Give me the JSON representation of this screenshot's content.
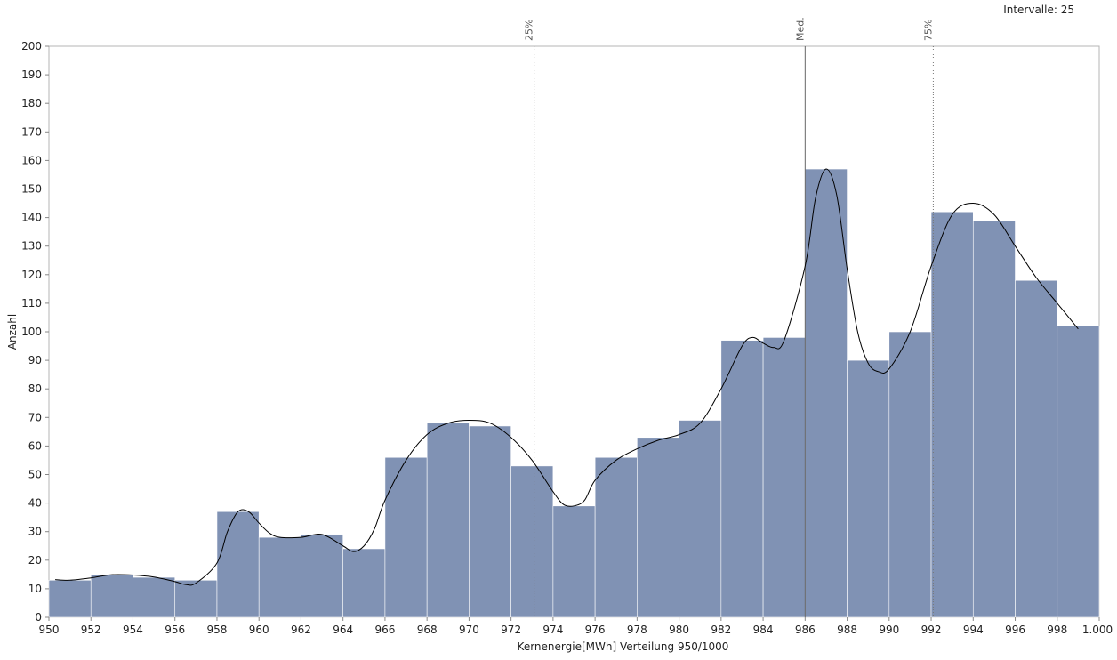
{
  "header": {
    "intervals_label": "Intervalle: 25"
  },
  "chart_data": {
    "type": "bar",
    "title": "",
    "xlabel": "Kernenergie[MWh] Verteilung 950/1000",
    "ylabel": "Anzahl",
    "xlim": [
      950,
      1000
    ],
    "ylim": [
      0,
      200
    ],
    "grid": false,
    "bin_edges": [
      950,
      952,
      954,
      956,
      958,
      960,
      962,
      964,
      966,
      968,
      970,
      972,
      974,
      976,
      978,
      980,
      982,
      984,
      986,
      988,
      990,
      992,
      994,
      996,
      998,
      1000
    ],
    "values": [
      13,
      15,
      14,
      13,
      37,
      28,
      29,
      24,
      56,
      68,
      67,
      53,
      39,
      56,
      63,
      69,
      97,
      98,
      157,
      90,
      100,
      142,
      139,
      118,
      102
    ],
    "x_ticks": [
      950,
      952,
      954,
      956,
      958,
      960,
      962,
      964,
      966,
      968,
      970,
      972,
      974,
      976,
      978,
      980,
      982,
      984,
      986,
      988,
      990,
      992,
      994,
      996,
      998,
      1000
    ],
    "x_tick_labels": [
      "950",
      "952",
      "954",
      "956",
      "958",
      "960",
      "962",
      "964",
      "966",
      "968",
      "970",
      "972",
      "974",
      "976",
      "978",
      "980",
      "982",
      "984",
      "986",
      "988",
      "990",
      "992",
      "994",
      "996",
      "998",
      "1.000"
    ],
    "y_ticks": [
      0,
      10,
      20,
      30,
      40,
      50,
      60,
      70,
      80,
      90,
      100,
      110,
      120,
      130,
      140,
      150,
      160,
      170,
      180,
      190,
      200
    ],
    "markers": [
      {
        "label": "25%",
        "x": 973.1,
        "style": "dotted"
      },
      {
        "label": "Med.",
        "x": 986.0,
        "style": "solid"
      },
      {
        "label": "75%",
        "x": 992.1,
        "style": "dotted"
      }
    ],
    "density_curve": [
      [
        950.3,
        13.2
      ],
      [
        951,
        13
      ],
      [
        952,
        13.8
      ],
      [
        953,
        14.9
      ],
      [
        954,
        14.8
      ],
      [
        955,
        14.1
      ],
      [
        956,
        12.5
      ],
      [
        956.5,
        11.5
      ],
      [
        957,
        12
      ],
      [
        958,
        19
      ],
      [
        958.5,
        30
      ],
      [
        959,
        37
      ],
      [
        959.5,
        37
      ],
      [
        960,
        33
      ],
      [
        960.5,
        29.5
      ],
      [
        961,
        28
      ],
      [
        962,
        28
      ],
      [
        963,
        29
      ],
      [
        964,
        25
      ],
      [
        964.5,
        23
      ],
      [
        965,
        25
      ],
      [
        965.5,
        31
      ],
      [
        966,
        41
      ],
      [
        967,
        55
      ],
      [
        968,
        64
      ],
      [
        969,
        68
      ],
      [
        970,
        69
      ],
      [
        971,
        68
      ],
      [
        972,
        63
      ],
      [
        973,
        55
      ],
      [
        974,
        44
      ],
      [
        974.5,
        39.5
      ],
      [
        975,
        39
      ],
      [
        975.5,
        41
      ],
      [
        976,
        48
      ],
      [
        977,
        55
      ],
      [
        978,
        59
      ],
      [
        979,
        62
      ],
      [
        980,
        64
      ],
      [
        981,
        68
      ],
      [
        982,
        80
      ],
      [
        983,
        95
      ],
      [
        983.5,
        98
      ],
      [
        984,
        96
      ],
      [
        984.5,
        94.5
      ],
      [
        985,
        97
      ],
      [
        986,
        123
      ],
      [
        986.5,
        147
      ],
      [
        987,
        157
      ],
      [
        987.5,
        148
      ],
      [
        988,
        122
      ],
      [
        988.5,
        100
      ],
      [
        989,
        89
      ],
      [
        989.5,
        86
      ],
      [
        990,
        87
      ],
      [
        991,
        100
      ],
      [
        992,
        123
      ],
      [
        993,
        141
      ],
      [
        994,
        145
      ],
      [
        995,
        141
      ],
      [
        996,
        130
      ],
      [
        997,
        119
      ],
      [
        998,
        110
      ],
      [
        999,
        101
      ]
    ],
    "colors": {
      "bar_fill": "#8092b4",
      "bar_edge": "#ffffff",
      "curve": "#000000",
      "frame": "#b4b4b4",
      "marker": "#777777",
      "median": "#666666"
    }
  }
}
